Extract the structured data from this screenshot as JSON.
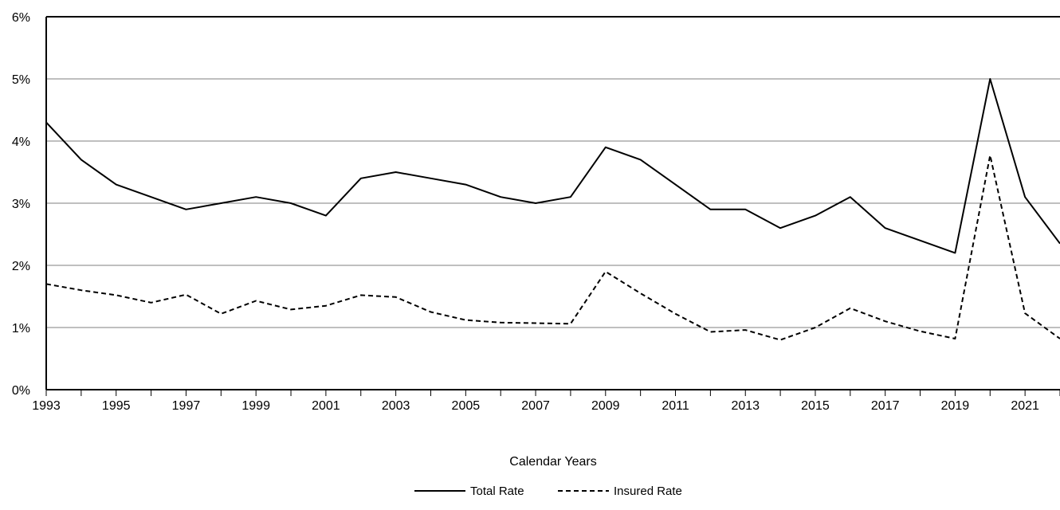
{
  "chart_data": {
    "type": "line",
    "title": "",
    "xlabel": "Calendar Years",
    "ylabel": "",
    "x": [
      1993,
      1994,
      1995,
      1996,
      1997,
      1998,
      1999,
      2000,
      2001,
      2002,
      2003,
      2004,
      2005,
      2006,
      2007,
      2008,
      2009,
      2010,
      2011,
      2012,
      2013,
      2014,
      2015,
      2016,
      2017,
      2018,
      2019,
      2020,
      2021,
      2022
    ],
    "xlim": [
      1993,
      2022
    ],
    "ylim": [
      0,
      6
    ],
    "y_unit": "%",
    "x_tick_labels": [
      "1993",
      "1995",
      "1997",
      "1999",
      "2001",
      "2003",
      "2005",
      "2007",
      "2009",
      "2011",
      "2013",
      "2015",
      "2017",
      "2019",
      "2021"
    ],
    "y_tick_labels": [
      "0%",
      "1%",
      "2%",
      "3%",
      "4%",
      "5%",
      "6%"
    ],
    "grid": "horizontal",
    "legend_position": "bottom-center",
    "series": [
      {
        "name": "Total Rate",
        "style": "solid",
        "color": "#000000",
        "values": [
          4.3,
          3.7,
          3.3,
          3.1,
          2.9,
          3.0,
          3.1,
          3.0,
          2.8,
          3.4,
          3.5,
          3.4,
          3.3,
          3.1,
          3.0,
          3.1,
          3.9,
          3.7,
          3.3,
          2.9,
          2.9,
          2.6,
          2.8,
          3.1,
          2.6,
          2.4,
          2.2,
          5.0,
          3.1,
          2.35
        ]
      },
      {
        "name": "Insured Rate",
        "style": "dashed",
        "color": "#000000",
        "values": [
          1.7,
          1.6,
          1.52,
          1.4,
          1.53,
          1.22,
          1.43,
          1.29,
          1.35,
          1.52,
          1.49,
          1.25,
          1.12,
          1.08,
          1.07,
          1.06,
          1.9,
          1.55,
          1.22,
          0.93,
          0.96,
          0.8,
          1.0,
          1.31,
          1.1,
          0.94,
          0.82,
          3.77,
          1.23,
          0.82
        ]
      }
    ]
  }
}
